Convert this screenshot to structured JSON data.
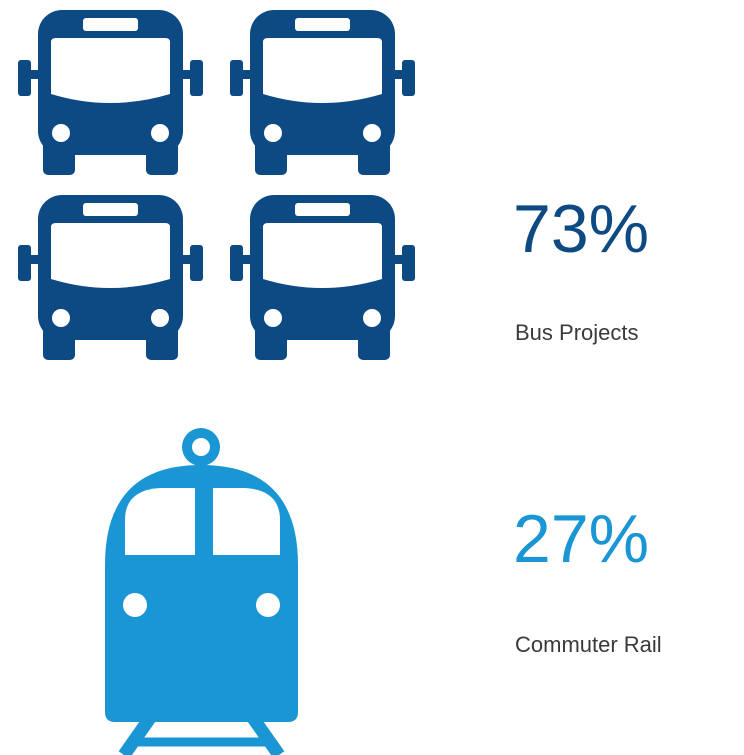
{
  "items": [
    {
      "value": "73%",
      "label": "Bus Projects"
    },
    {
      "value": "27%",
      "label": "Commuter Rail"
    }
  ]
}
